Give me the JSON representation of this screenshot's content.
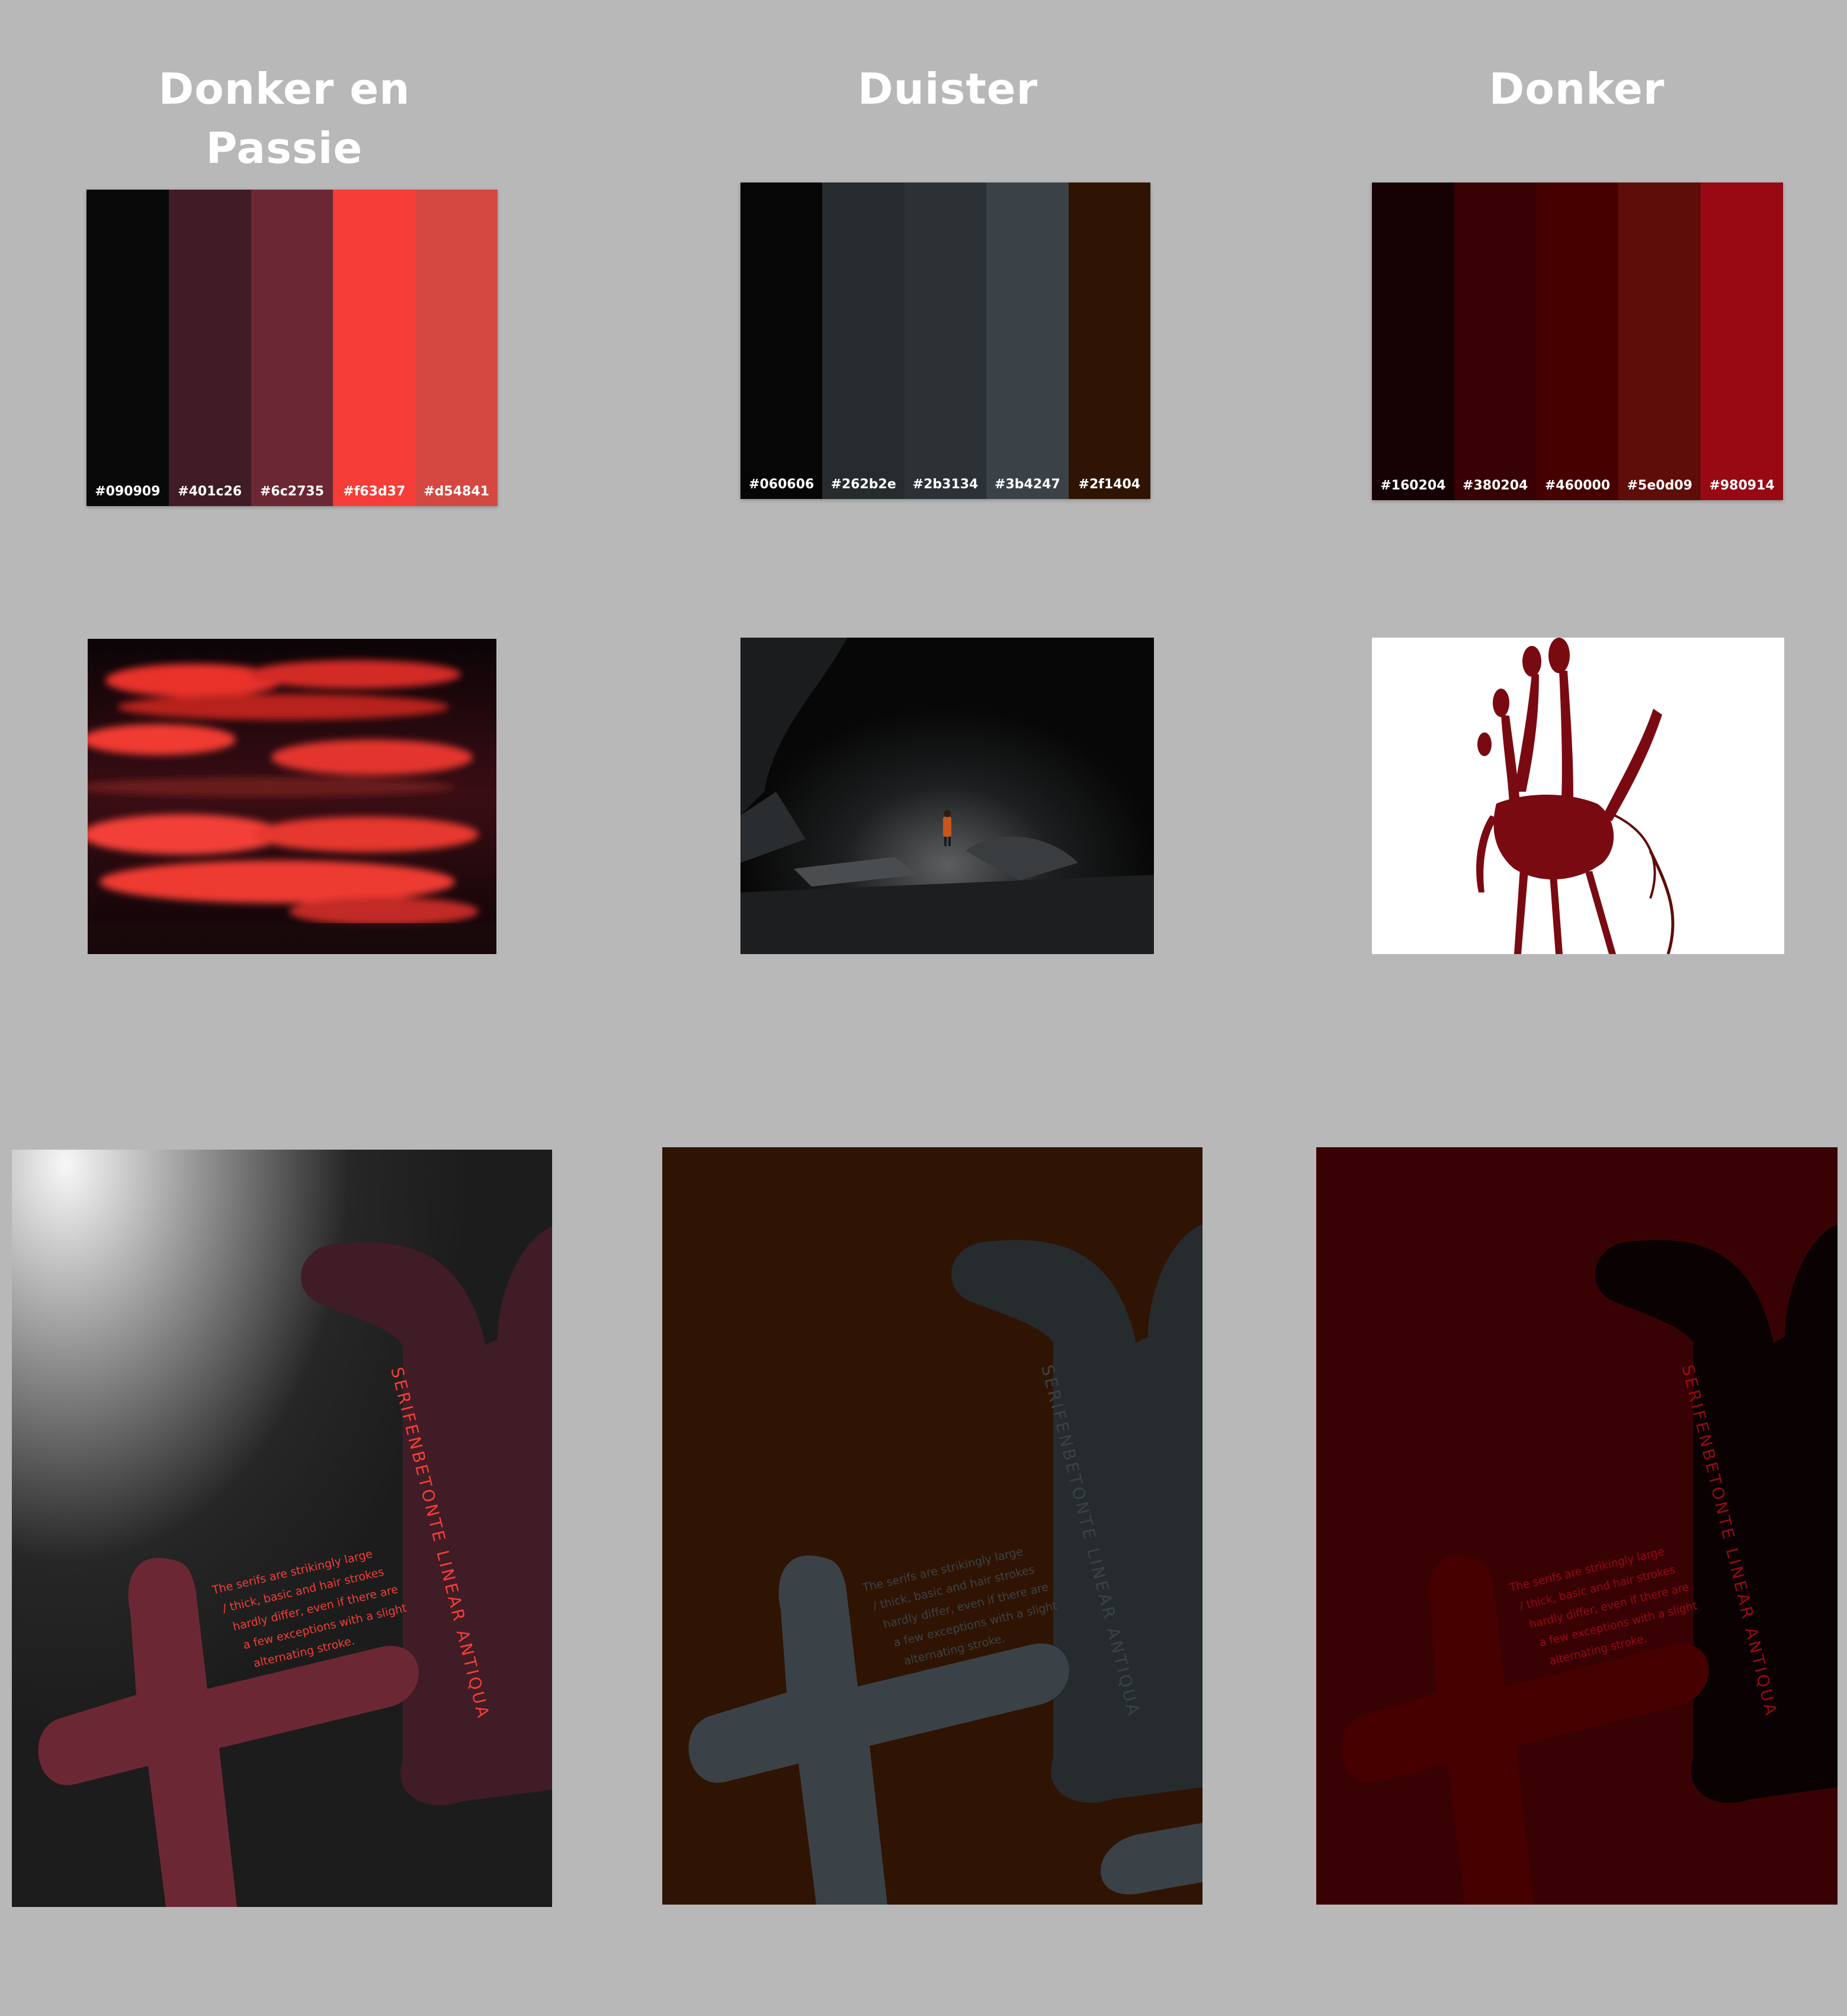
{
  "columns": [
    {
      "title": "Donker en Passie",
      "swatches": [
        {
          "color": "#090909",
          "label": "#090909"
        },
        {
          "color": "#401c26",
          "label": "#401c26"
        },
        {
          "color": "#6c2735",
          "label": "#6c2735"
        },
        {
          "color": "#f63d37",
          "label": "#f63d37"
        },
        {
          "color": "#d54841",
          "label": "#d54841"
        }
      ],
      "photo_icon": "red-clouds-painting-icon",
      "poster": {
        "background_top": "#f4f4f4",
        "background_bottom": "#1c1c1c",
        "shape_color_top": "#401c26",
        "shape_color_bottom": "#6c2735",
        "text_color": "#f63d37",
        "vertical_text": "SERIFENBETONTE LINEAR ANTIQUA",
        "body_lines": [
          "The serifs are strikingly large",
          "/ thick, basic and hair strokes",
          "hardly differ, even if there are",
          "a few exceptions with a slight",
          "alternating stroke."
        ]
      }
    },
    {
      "title": "Duister",
      "swatches": [
        {
          "color": "#060606",
          "label": "#060606"
        },
        {
          "color": "#262b2e",
          "label": "#262b2e"
        },
        {
          "color": "#2b3134",
          "label": "#2b3134"
        },
        {
          "color": "#3b4247",
          "label": "#3b4247"
        },
        {
          "color": "#2f1404",
          "label": "#2f1404"
        }
      ],
      "photo_icon": "dark-cave-with-figure-icon",
      "poster": {
        "background_top": "#2f1404",
        "background_bottom": "#2f1404",
        "shape_color_top": "#262b2e",
        "shape_color_bottom": "#3b4247",
        "text_color": "#3b4247",
        "vertical_text": "SERIFENBETONTE LINEAR ANTIQUA",
        "body_lines": [
          "The serifs are strikingly large",
          "/ thick, basic and hair strokes",
          "hardly differ, even if there are",
          "a few exceptions with a slight",
          "alternating stroke."
        ]
      }
    },
    {
      "title": "Donker",
      "swatches": [
        {
          "color": "#160204",
          "label": "#160204"
        },
        {
          "color": "#380204",
          "label": "#380204"
        },
        {
          "color": "#460000",
          "label": "#460000"
        },
        {
          "color": "#5e0d09",
          "label": "#5e0d09"
        },
        {
          "color": "#980914",
          "label": "#980914"
        }
      ],
      "photo_icon": "bloody-hand-icon",
      "poster": {
        "background_top": "#380204",
        "background_bottom": "#380204",
        "shape_color_top": "#160204",
        "shape_color_bottom": "#460000",
        "text_color": "#980914",
        "vertical_text": "SERIFENBETONTE LINEAR ANTIQUA",
        "body_lines": [
          "The serifs are strikingly large",
          "/ thick, basic and hair strokes",
          "hardly differ, even if there are",
          "a few exceptions with a slight",
          "alternating stroke."
        ]
      }
    }
  ]
}
